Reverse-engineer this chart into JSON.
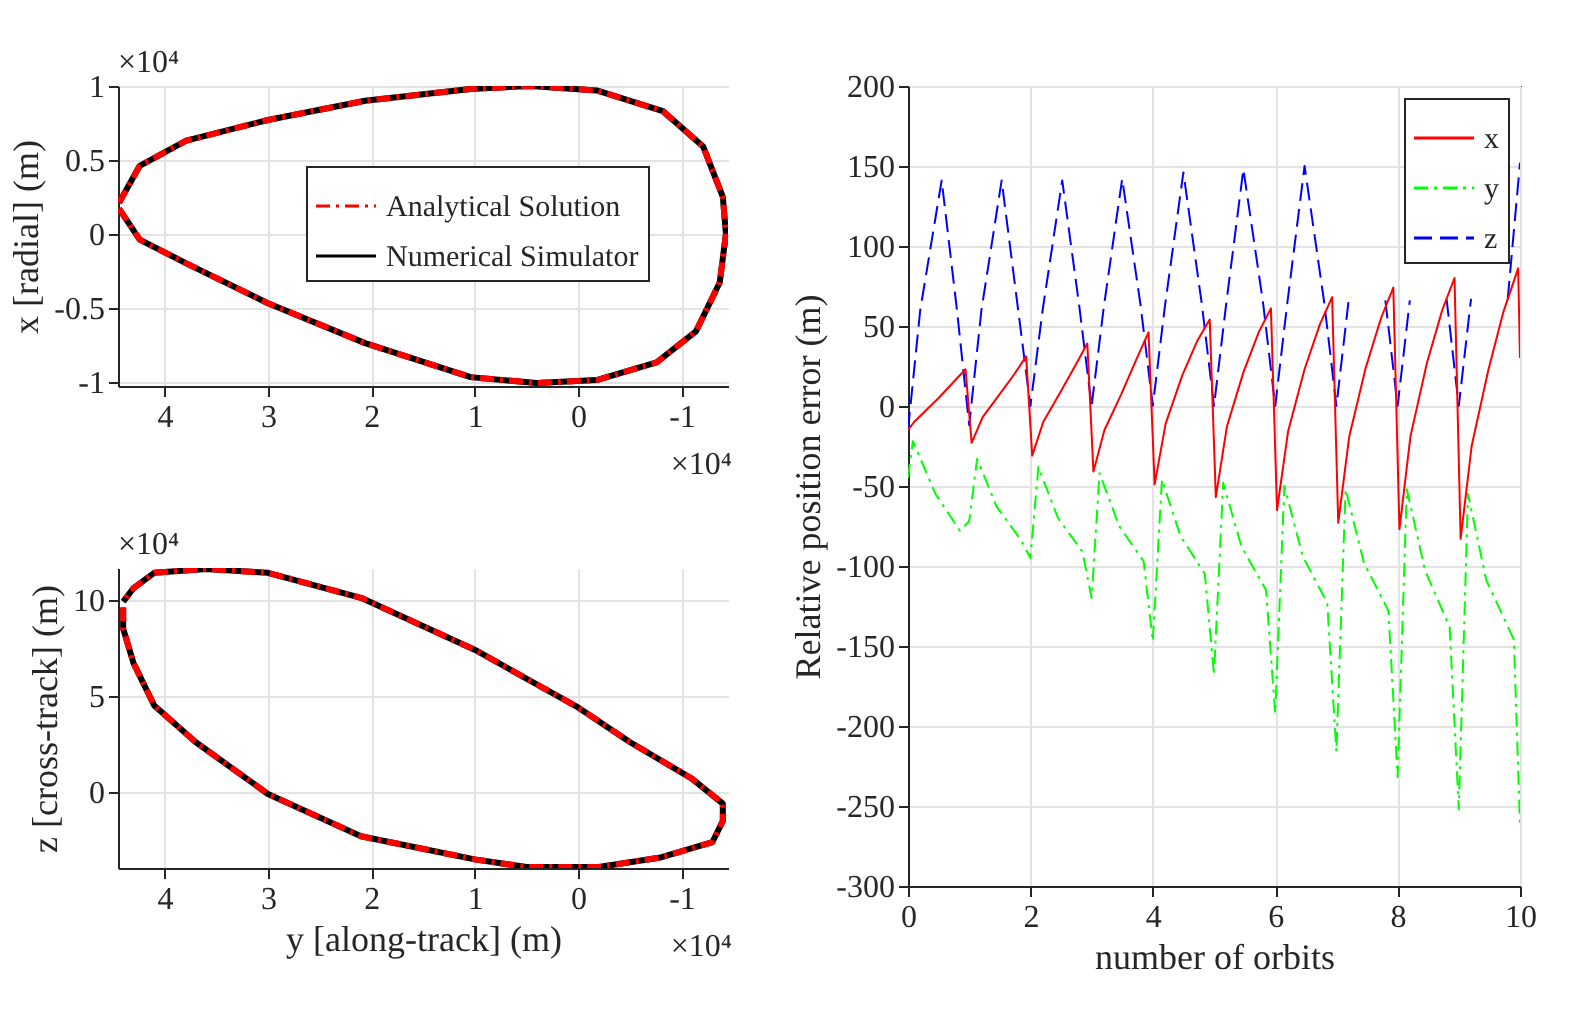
{
  "chart_data": [
    {
      "type": "line",
      "ylabel": "x [radial] (m)",
      "xlim": [
        4.45,
        -1.45
      ],
      "xticks": [
        4,
        3,
        2,
        1,
        0,
        -1
      ],
      "ylim": [
        -1.03,
        1.0
      ],
      "yticks": [
        -1,
        -0.5,
        0,
        0.5,
        1
      ],
      "grid": true,
      "legend": "top right",
      "annotations": [
        "×10⁴",
        "×10⁴"
      ],
      "series": [
        {
          "name": "Analytical Solution",
          "color": "#ff0000",
          "line_style": "dashdot",
          "x": [
            4.44,
            4.24,
            3.79,
            3.0,
            2.06,
            1.04,
            0.46,
            -0.18,
            -0.82,
            -1.21,
            -1.4,
            -1.43,
            -1.37,
            -1.14,
            -0.76,
            -0.18,
            0.4,
            1.04,
            2.06,
            3.0,
            3.79,
            4.24,
            4.44
          ],
          "values": [
            0.21,
            0.46,
            0.63,
            0.77,
            0.9,
            0.98,
            1.0,
            0.97,
            0.83,
            0.59,
            0.25,
            0.0,
            -0.33,
            -0.66,
            -0.87,
            -0.99,
            -1.01,
            -0.97,
            -0.74,
            -0.47,
            -0.2,
            -0.04,
            0.17
          ]
        },
        {
          "name": "Numerical Simulator",
          "color": "#000000",
          "line_style": "solid",
          "x": [
            4.44,
            4.24,
            3.79,
            3.0,
            2.06,
            1.04,
            0.46,
            -0.18,
            -0.82,
            -1.21,
            -1.4,
            -1.43,
            -1.37,
            -1.14,
            -0.76,
            -0.18,
            0.4,
            1.04,
            2.06,
            3.0,
            3.79,
            4.24,
            4.44
          ],
          "values": [
            0.21,
            0.46,
            0.63,
            0.77,
            0.9,
            0.98,
            1.0,
            0.97,
            0.83,
            0.59,
            0.25,
            0.0,
            -0.33,
            -0.66,
            -0.87,
            -0.99,
            -1.01,
            -0.97,
            -0.74,
            -0.47,
            -0.2,
            -0.04,
            0.17
          ]
        }
      ]
    },
    {
      "type": "line",
      "xlabel": "y [along-track] (m)",
      "ylabel": "z [cross-track] (m)",
      "xlim": [
        4.45,
        -1.45
      ],
      "xticks": [
        4,
        3,
        2,
        1,
        0,
        -1
      ],
      "ylim": [
        -3.95,
        11.65
      ],
      "yticks": [
        0,
        5,
        10
      ],
      "grid": true,
      "annotations": [
        "×10⁴",
        "×10⁴"
      ],
      "series": [
        {
          "color": "#ff0000",
          "line_style": "dashdot",
          "x": [
            4.4,
            4.4,
            4.3,
            4.1,
            3.7,
            3.0,
            2.1,
            1.0,
            0.5,
            -0.2,
            -0.8,
            -1.3,
            -1.4,
            -1.4,
            -1.1,
            -0.5,
            0.0,
            1.0,
            2.1,
            3.0,
            3.6,
            4.1,
            4.3,
            4.4
          ],
          "values": [
            9.6,
            8.5,
            6.7,
            4.5,
            2.6,
            -0.1,
            -2.3,
            -3.5,
            -3.9,
            -3.9,
            -3.4,
            -2.6,
            -1.5,
            -0.6,
            0.7,
            2.6,
            4.4,
            7.4,
            10.1,
            11.4,
            11.6,
            11.4,
            10.6,
            9.9
          ]
        },
        {
          "color": "#000000",
          "line_style": "solid",
          "x": [
            4.4,
            4.4,
            4.3,
            4.1,
            3.7,
            3.0,
            2.1,
            1.0,
            0.5,
            -0.2,
            -0.8,
            -1.3,
            -1.4,
            -1.4,
            -1.1,
            -0.5,
            0.0,
            1.0,
            2.1,
            3.0,
            3.6,
            4.1,
            4.3,
            4.4
          ],
          "values": [
            9.6,
            8.5,
            6.7,
            4.5,
            2.6,
            -0.1,
            -2.3,
            -3.5,
            -3.9,
            -3.9,
            -3.4,
            -2.6,
            -1.5,
            -0.6,
            0.7,
            2.6,
            4.4,
            7.4,
            10.1,
            11.4,
            11.6,
            11.4,
            10.6,
            9.9
          ]
        }
      ]
    },
    {
      "type": "line",
      "xlabel": "number of orbits",
      "ylabel": "Relative position error (m)",
      "xlim": [
        0,
        10
      ],
      "xticks": [
        0,
        2,
        4,
        6,
        8,
        10
      ],
      "ylim": [
        -300,
        200
      ],
      "yticks": [
        -300,
        -250,
        -200,
        -150,
        -100,
        -50,
        0,
        50,
        100,
        150,
        200
      ],
      "grid": true,
      "legend": "top right",
      "series": [
        {
          "name": "x",
          "color": "#ff0000",
          "line_style": "solid",
          "x": [
            0,
            0.1,
            0.5,
            0.94,
            1.04,
            1.22,
            1.49,
            1.74,
            1.93,
            2.03,
            2.21,
            2.48,
            2.73,
            2.93,
            3.03,
            3.21,
            3.48,
            3.73,
            3.93,
            4.03,
            4.21,
            4.48,
            4.73,
            4.93,
            5.03,
            5.21,
            5.48,
            5.73,
            5.93,
            6.03,
            6.21,
            6.48,
            6.73,
            6.93,
            7.03,
            7.21,
            7.48,
            7.73,
            7.93,
            8.03,
            8.21,
            8.48,
            8.73,
            8.93,
            9.03,
            9.21,
            9.48,
            9.73,
            9.97,
            10.0
          ],
          "values": [
            -15,
            -10,
            5,
            23,
            -23,
            -7,
            7,
            20,
            31,
            -31,
            -10,
            8,
            25,
            39,
            -41,
            -15,
            7,
            29,
            46,
            -49,
            -11,
            19,
            41,
            54,
            -57,
            -13,
            21,
            46,
            61,
            -65,
            -16,
            23,
            51,
            68,
            -73,
            -19,
            24,
            55,
            74,
            -77,
            -19,
            27,
            60,
            80,
            -83,
            -25,
            22,
            59,
            86,
            30
          ]
        },
        {
          "name": "y",
          "color": "#00ff00",
          "line_style": "dashdot",
          "x": [
            0,
            0.08,
            0.45,
            0.85,
            1.0,
            1.13,
            1.45,
            1.85,
            2.0,
            2.13,
            2.45,
            2.85,
            3.0,
            3.13,
            3.45,
            3.85,
            4.0,
            4.15,
            4.45,
            4.85,
            5.0,
            5.15,
            5.45,
            5.85,
            6.0,
            6.15,
            6.45,
            6.85,
            7.0,
            7.15,
            7.45,
            7.85,
            8.0,
            8.15,
            8.45,
            8.85,
            9.0,
            9.15,
            9.45,
            9.9,
            10.0
          ],
          "values": [
            -45,
            -22,
            -55,
            -78,
            -72,
            -33,
            -63,
            -84,
            -95,
            -38,
            -70,
            -91,
            -120,
            -42,
            -75,
            -97,
            -147,
            -46,
            -81,
            -105,
            -168,
            -48,
            -88,
            -115,
            -192,
            -50,
            -94,
            -123,
            -216,
            -52,
            -98,
            -128,
            -232,
            -52,
            -103,
            -138,
            -252,
            -55,
            -109,
            -146,
            -262
          ]
        },
        {
          "name": "z",
          "color": "#0000ff",
          "line_style": "dashed",
          "x": [
            0,
            0.2,
            0.55,
            0.8,
            1.0,
            1.2,
            1.53,
            1.8,
            2.0,
            2.2,
            2.52,
            2.8,
            3.0,
            3.2,
            3.5,
            3.8,
            4.0,
            4.2,
            4.5,
            4.8,
            5.0,
            5.2,
            5.48,
            5.8,
            6.0,
            6.2,
            6.48,
            6.8,
            7.0,
            7.2,
            7.5,
            7.8,
            8.0,
            8.2,
            8.5,
            8.8,
            9.0,
            9.2,
            9.5,
            9.8,
            10.0
          ],
          "values": [
            -15,
            60,
            141,
            60,
            -12,
            60,
            141,
            60,
            0,
            60,
            141,
            62,
            0,
            62,
            142,
            63,
            0,
            63,
            146,
            64,
            0,
            64,
            148,
            65,
            0,
            65,
            150,
            65,
            0,
            66,
            null,
            66,
            0,
            66,
            null,
            67,
            0,
            67,
            null,
            67,
            152
          ]
        }
      ]
    }
  ]
}
